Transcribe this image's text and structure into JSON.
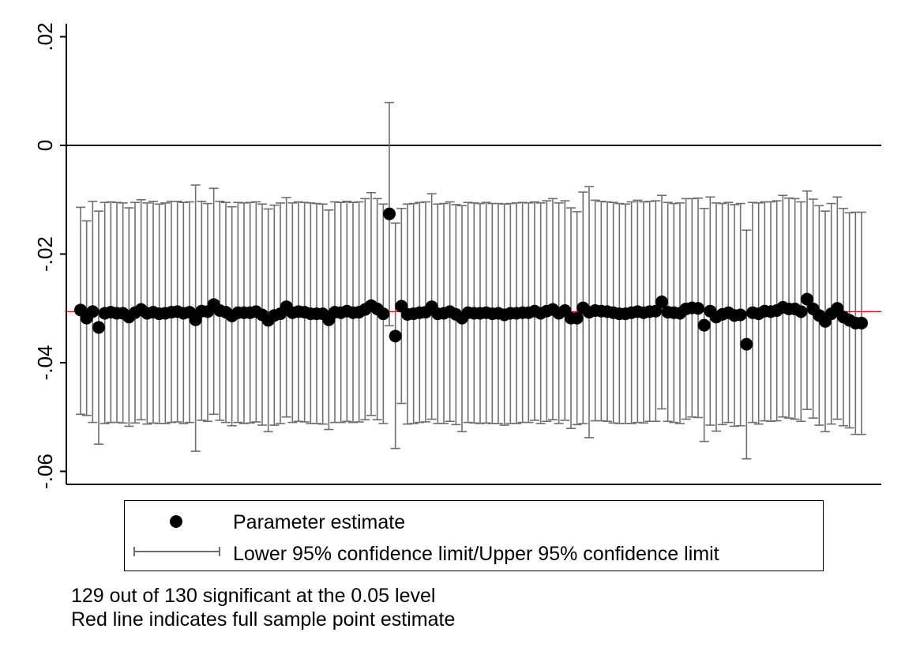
{
  "chart_data": {
    "type": "scatter",
    "ylim": [
      -0.063,
      0.023
    ],
    "yticks": [
      {
        "value": 0.02,
        "label": ".02"
      },
      {
        "value": 0,
        "label": "0"
      },
      {
        "value": -0.02,
        "label": "-.02"
      },
      {
        "value": -0.04,
        "label": "-.04"
      },
      {
        "value": -0.06,
        "label": "-.06"
      }
    ],
    "x": [
      1,
      2,
      3,
      4,
      5,
      6,
      7,
      8,
      9,
      10,
      11,
      12,
      13,
      14,
      15,
      16,
      17,
      18,
      19,
      20,
      21,
      22,
      23,
      24,
      25,
      26,
      27,
      28,
      29,
      30,
      31,
      32,
      33,
      34,
      35,
      36,
      37,
      38,
      39,
      40,
      41,
      42,
      43,
      44,
      45,
      46,
      47,
      48,
      49,
      50,
      51,
      52,
      53,
      54,
      55,
      56,
      57,
      58,
      59,
      60,
      61,
      62,
      63,
      64,
      65,
      66,
      67,
      68,
      69,
      70,
      71,
      72,
      73,
      74,
      75,
      76,
      77,
      78,
      79,
      80,
      81,
      82,
      83,
      84,
      85,
      86,
      87,
      88,
      89,
      90,
      91,
      92,
      93,
      94,
      95,
      96,
      97,
      98,
      99,
      100,
      101,
      102,
      103,
      104,
      105,
      106,
      107,
      108,
      109,
      110,
      111,
      112,
      113,
      114,
      115,
      116,
      117,
      118,
      119,
      120,
      121,
      122,
      123,
      124,
      125,
      126,
      127,
      128,
      129,
      130
    ],
    "series": [
      {
        "name": "Parameter estimate",
        "values": [
          -0.0303,
          -0.0318,
          -0.0306,
          -0.0335,
          -0.0309,
          -0.0307,
          -0.0309,
          -0.0309,
          -0.0316,
          -0.0308,
          -0.0302,
          -0.0309,
          -0.0307,
          -0.031,
          -0.0309,
          -0.0307,
          -0.0306,
          -0.0309,
          -0.0307,
          -0.0321,
          -0.0305,
          -0.0306,
          -0.0293,
          -0.0304,
          -0.0307,
          -0.0314,
          -0.0308,
          -0.0308,
          -0.0308,
          -0.0306,
          -0.0312,
          -0.0322,
          -0.0313,
          -0.031,
          -0.0297,
          -0.0308,
          -0.0306,
          -0.0307,
          -0.031,
          -0.031,
          -0.031,
          -0.0321,
          -0.0307,
          -0.0308,
          -0.0305,
          -0.0308,
          -0.0307,
          -0.0302,
          -0.0295,
          -0.0301,
          -0.031,
          -0.0126,
          -0.0351,
          -0.0296,
          -0.0311,
          -0.031,
          -0.0308,
          -0.0307,
          -0.0297,
          -0.031,
          -0.0309,
          -0.0306,
          -0.0311,
          -0.0318,
          -0.0308,
          -0.0309,
          -0.0309,
          -0.0308,
          -0.031,
          -0.0309,
          -0.0312,
          -0.0309,
          -0.0309,
          -0.0308,
          -0.0308,
          -0.0305,
          -0.0309,
          -0.0305,
          -0.0302,
          -0.0309,
          -0.0304,
          -0.0318,
          -0.0318,
          -0.0299,
          -0.0307,
          -0.0304,
          -0.0305,
          -0.0306,
          -0.0308,
          -0.031,
          -0.031,
          -0.0308,
          -0.0306,
          -0.0308,
          -0.0306,
          -0.0305,
          -0.0288,
          -0.0307,
          -0.0308,
          -0.0309,
          -0.0301,
          -0.0299,
          -0.03,
          -0.0331,
          -0.0305,
          -0.0316,
          -0.0311,
          -0.0308,
          -0.0313,
          -0.0312,
          -0.0366,
          -0.0308,
          -0.031,
          -0.0305,
          -0.0306,
          -0.0304,
          -0.0298,
          -0.0301,
          -0.0301,
          -0.0306,
          -0.0283,
          -0.0301,
          -0.0313,
          -0.0324,
          -0.031,
          -0.03,
          -0.0316,
          -0.0322,
          -0.0327,
          -0.0327
        ]
      },
      {
        "name": "Lower 95% confidence limit",
        "values": [
          -0.0495,
          -0.0497,
          -0.051,
          -0.055,
          -0.0512,
          -0.051,
          -0.051,
          -0.0511,
          -0.0517,
          -0.0511,
          -0.0505,
          -0.0513,
          -0.0511,
          -0.0512,
          -0.0512,
          -0.051,
          -0.0509,
          -0.0512,
          -0.051,
          -0.0563,
          -0.0506,
          -0.0508,
          -0.0495,
          -0.0506,
          -0.051,
          -0.0516,
          -0.051,
          -0.0512,
          -0.0511,
          -0.0509,
          -0.0515,
          -0.0527,
          -0.0515,
          -0.0512,
          -0.05,
          -0.051,
          -0.0508,
          -0.0509,
          -0.0512,
          -0.0512,
          -0.0513,
          -0.0523,
          -0.051,
          -0.051,
          -0.0508,
          -0.051,
          -0.0509,
          -0.0505,
          -0.0497,
          -0.0505,
          -0.0512,
          -0.0332,
          -0.0558,
          -0.0475,
          -0.0513,
          -0.0512,
          -0.051,
          -0.0509,
          -0.0504,
          -0.0512,
          -0.0512,
          -0.0508,
          -0.0514,
          -0.0527,
          -0.051,
          -0.0511,
          -0.0512,
          -0.0511,
          -0.0512,
          -0.0512,
          -0.0515,
          -0.0512,
          -0.0512,
          -0.051,
          -0.051,
          -0.0506,
          -0.0512,
          -0.0508,
          -0.0505,
          -0.0512,
          -0.0506,
          -0.0521,
          -0.0514,
          -0.0512,
          -0.0538,
          -0.0507,
          -0.0507,
          -0.0508,
          -0.0511,
          -0.0512,
          -0.0512,
          -0.0512,
          -0.051,
          -0.0511,
          -0.0508,
          -0.0508,
          -0.0485,
          -0.0508,
          -0.051,
          -0.0512,
          -0.0504,
          -0.05,
          -0.0501,
          -0.0545,
          -0.0515,
          -0.0526,
          -0.0514,
          -0.051,
          -0.0517,
          -0.0516,
          -0.0577,
          -0.051,
          -0.0513,
          -0.0507,
          -0.0508,
          -0.0507,
          -0.05,
          -0.0502,
          -0.0504,
          -0.0508,
          -0.0486,
          -0.0502,
          -0.0515,
          -0.0527,
          -0.0513,
          -0.0504,
          -0.0516,
          -0.052,
          -0.0532,
          -0.0532
        ]
      },
      {
        "name": "Upper 95% confidence limit",
        "values": [
          -0.0114,
          -0.0139,
          -0.0103,
          -0.0121,
          -0.0105,
          -0.0104,
          -0.0105,
          -0.0106,
          -0.0115,
          -0.0105,
          -0.01,
          -0.0106,
          -0.0103,
          -0.0108,
          -0.0106,
          -0.0103,
          -0.0103,
          -0.0105,
          -0.0104,
          -0.0073,
          -0.0103,
          -0.0107,
          -0.0079,
          -0.0103,
          -0.0105,
          -0.0113,
          -0.0105,
          -0.0106,
          -0.0105,
          -0.0104,
          -0.0108,
          -0.0117,
          -0.011,
          -0.0106,
          -0.0096,
          -0.0106,
          -0.0104,
          -0.0105,
          -0.0106,
          -0.0107,
          -0.0108,
          -0.0119,
          -0.0104,
          -0.0105,
          -0.0103,
          -0.0105,
          -0.0104,
          -0.0098,
          -0.0087,
          -0.0098,
          -0.0108,
          0.0079,
          -0.0143,
          -0.0116,
          -0.0108,
          -0.0107,
          -0.0105,
          -0.0104,
          -0.0089,
          -0.0108,
          -0.0107,
          -0.0104,
          -0.0109,
          -0.0111,
          -0.0105,
          -0.0106,
          -0.0107,
          -0.0105,
          -0.0107,
          -0.0107,
          -0.0108,
          -0.0107,
          -0.0106,
          -0.0105,
          -0.0106,
          -0.0104,
          -0.0106,
          -0.0102,
          -0.0098,
          -0.0106,
          -0.0102,
          -0.0115,
          -0.0122,
          -0.0086,
          -0.0076,
          -0.0101,
          -0.0103,
          -0.0104,
          -0.0105,
          -0.0107,
          -0.0108,
          -0.0104,
          -0.0101,
          -0.0104,
          -0.0103,
          -0.0102,
          -0.0092,
          -0.0105,
          -0.0107,
          -0.0106,
          -0.0098,
          -0.0098,
          -0.0097,
          -0.0116,
          -0.0095,
          -0.0106,
          -0.0107,
          -0.0105,
          -0.0109,
          -0.0107,
          -0.0156,
          -0.0105,
          -0.0106,
          -0.0104,
          -0.0104,
          -0.0102,
          -0.0092,
          -0.0097,
          -0.0098,
          -0.0104,
          -0.0084,
          -0.0099,
          -0.0111,
          -0.0121,
          -0.0107,
          -0.0095,
          -0.0116,
          -0.0124,
          -0.0123,
          -0.0123
        ]
      }
    ],
    "reference_lines": {
      "zero": 0,
      "full_sample_estimate": -0.0306
    },
    "colors": {
      "points": "#000000",
      "ci": "#6e6e6e",
      "zero_line": "#000000",
      "full_sample_line": "#ff0000"
    },
    "grid": false
  },
  "legend": {
    "point_label": "Parameter estimate",
    "ci_label": "Lower 95% confidence limit/Upper 95% confidence limit"
  },
  "notes": {
    "line1": "129 out of 130 significant at the 0.05 level",
    "line2": "Red line indicates full sample point estimate"
  }
}
